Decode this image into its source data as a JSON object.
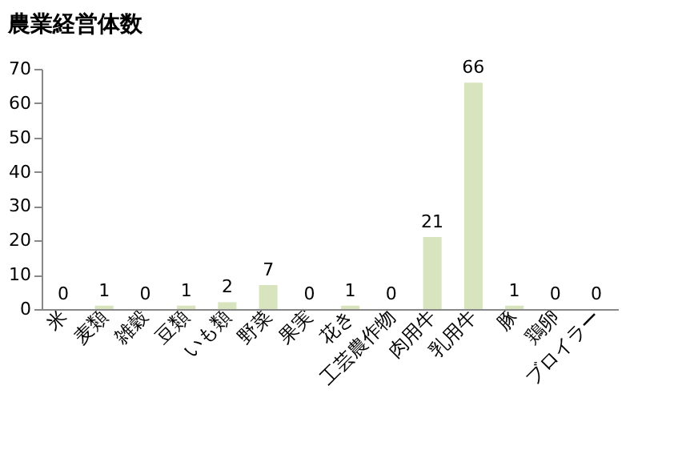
{
  "chart_data": {
    "type": "bar",
    "title": "農業経営体数",
    "categories": [
      "米",
      "麦類",
      "雑穀",
      "豆類",
      "いも類",
      "野菜",
      "果実",
      "花き",
      "工芸農作物",
      "肉用牛",
      "乳用牛",
      "豚",
      "鶏卵",
      "ブロイラー"
    ],
    "values": [
      0,
      1,
      0,
      1,
      2,
      7,
      0,
      1,
      0,
      21,
      66,
      1,
      0,
      0
    ],
    "color": "#d7e4bd",
    "ylim": [
      0,
      70
    ],
    "yticks": [
      0,
      10,
      20,
      30,
      40,
      50,
      60,
      70
    ],
    "grid": false,
    "data_labels": true
  }
}
